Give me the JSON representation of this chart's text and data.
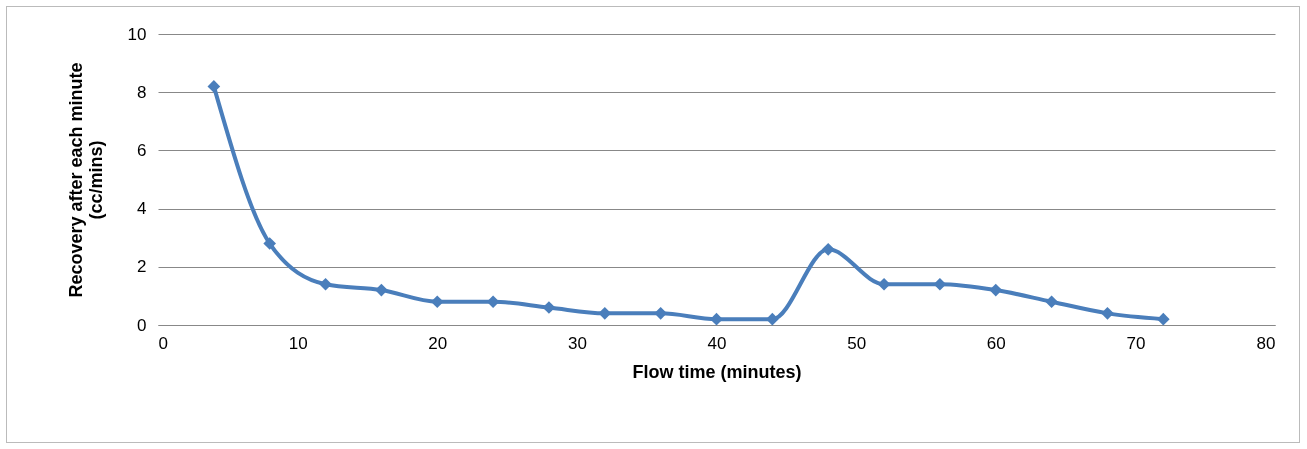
{
  "chart_data": {
    "type": "line",
    "xlabel": "Flow time (minutes)",
    "ylabel": "Recovery after each minute\n(cc/mins)",
    "x": [
      4,
      8,
      12,
      16,
      20,
      24,
      28,
      32,
      36,
      40,
      44,
      48,
      52,
      56,
      60,
      64,
      68,
      72
    ],
    "series": [
      {
        "color": "#4a7ebb",
        "values": [
          8.2,
          2.8,
          1.4,
          1.2,
          0.8,
          0.8,
          0.6,
          0.4,
          0.4,
          0.2,
          0.2,
          2.6,
          1.4,
          1.4,
          1.2,
          0.8,
          0.4,
          0.2
        ]
      }
    ],
    "xlim": [
      0,
      80
    ],
    "xticks": [
      0,
      10,
      20,
      30,
      40,
      50,
      60,
      70,
      80
    ],
    "ylim": [
      0,
      10
    ],
    "yticks": [
      0,
      2,
      4,
      6,
      8,
      10
    ],
    "grid": "y",
    "marker": "diamond",
    "line_style": "solid"
  }
}
